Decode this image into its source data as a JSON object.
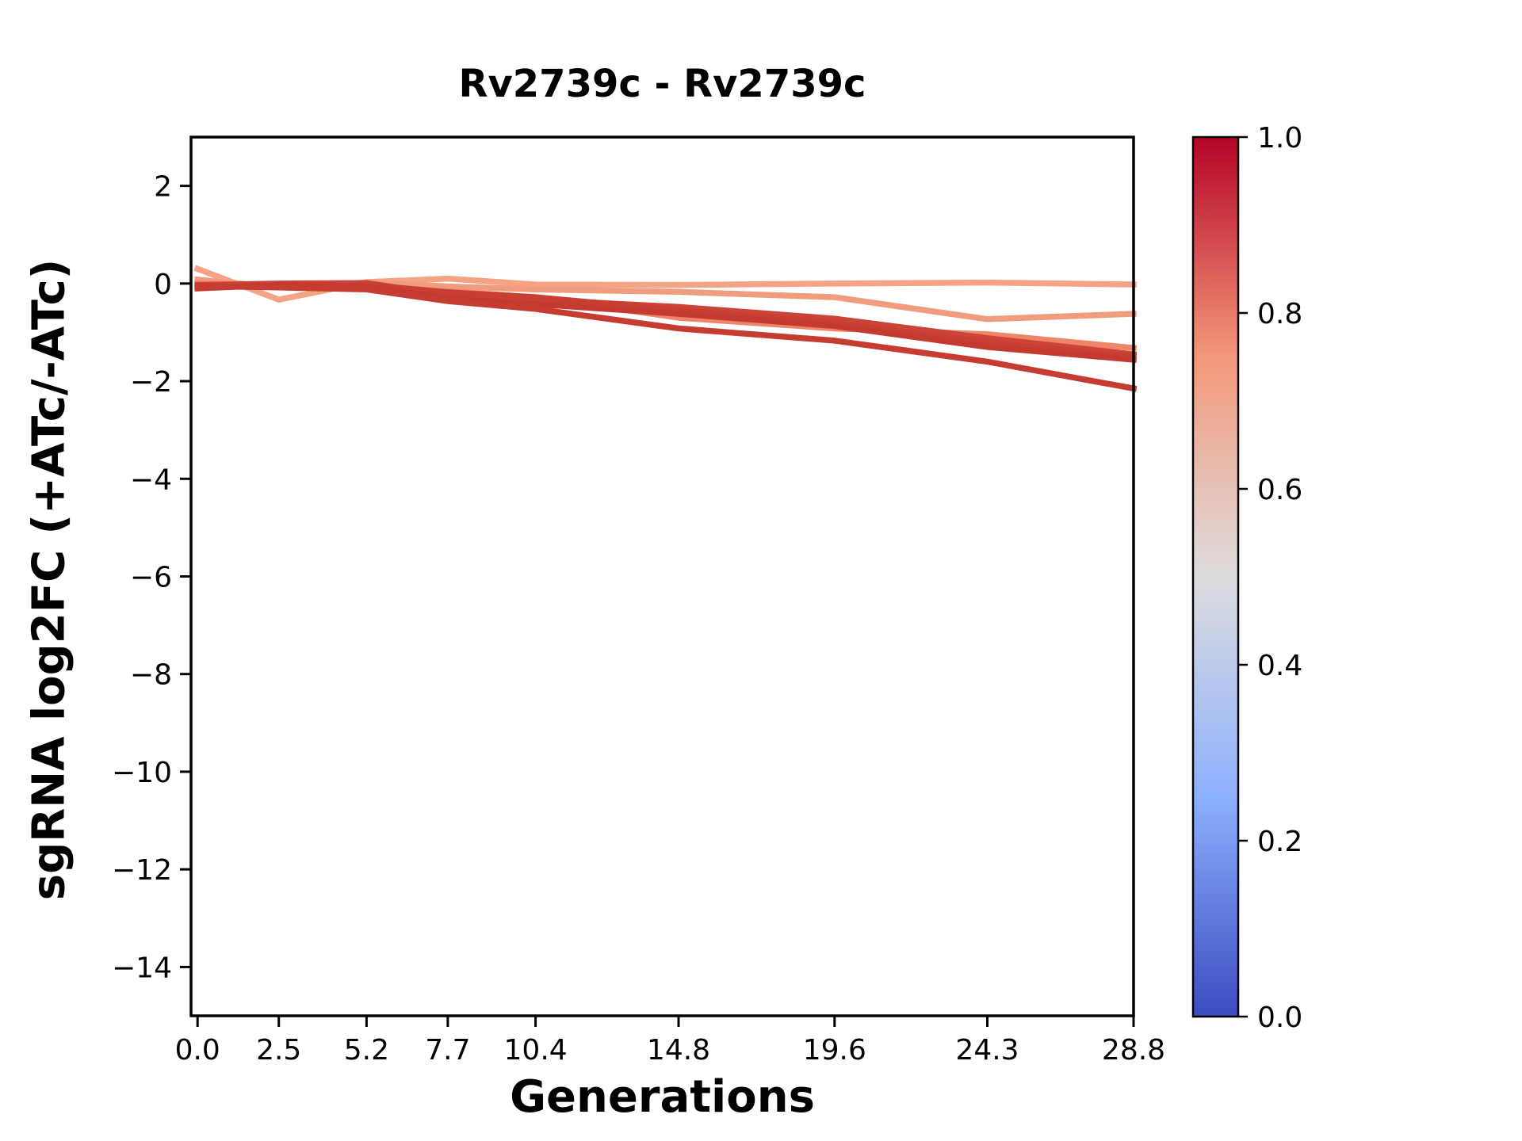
{
  "title": "Rv2739c - Rv2739c",
  "xlabel": "Generations",
  "ylabel": "sgRNA log2FC (+ATc/-ATc)",
  "chart_data": {
    "type": "line",
    "title": "Rv2739c - Rv2739c",
    "xlabel": "Generations",
    "ylabel": "sgRNA log2FC (+ATc/-ATc)",
    "grid": false,
    "legend": "none (colorbar only)",
    "xlim": [
      -0.2,
      28.8
    ],
    "ylim": [
      -15,
      3
    ],
    "x": [
      0.0,
      2.5,
      5.2,
      7.7,
      10.4,
      14.8,
      19.6,
      24.3,
      28.8
    ],
    "xtick_labels": [
      "0.0",
      "2.5",
      "5.2",
      "7.7",
      "10.4",
      "14.8",
      "19.6",
      "24.3",
      "28.8"
    ],
    "ytick_values": [
      2,
      0,
      -2,
      -4,
      -6,
      -8,
      -10,
      -12,
      -14
    ],
    "ytick_labels": [
      "2",
      "0",
      "−2",
      "−4",
      "−6",
      "−8",
      "−10",
      "−12",
      "−14"
    ],
    "series": [
      {
        "name": "line-1",
        "color": "#f4a384",
        "values": [
          0.3,
          -0.33,
          0.03,
          0.1,
          -0.02,
          -0.03,
          0.0,
          0.02,
          -0.02
        ]
      },
      {
        "name": "line-2",
        "color": "#f19c7c",
        "values": [
          0.08,
          -0.08,
          0.02,
          -0.06,
          -0.12,
          -0.17,
          -0.28,
          -0.73,
          -0.62
        ]
      },
      {
        "name": "line-3",
        "color": "#ee8468",
        "values": [
          0.0,
          -0.05,
          -0.04,
          -0.16,
          -0.28,
          -0.7,
          -0.92,
          -1.04,
          -1.32
        ]
      },
      {
        "name": "line-4",
        "color": "#cc4437",
        "values": [
          -0.03,
          0.0,
          0.01,
          -0.24,
          -0.33,
          -0.48,
          -0.72,
          -1.12,
          -1.45
        ]
      },
      {
        "name": "line-5",
        "color": "#c83e31",
        "values": [
          -0.06,
          -0.06,
          -0.03,
          -0.18,
          -0.28,
          -0.55,
          -0.8,
          -1.22,
          -1.5
        ]
      },
      {
        "name": "line-6",
        "color": "#c53a2e",
        "values": [
          -0.1,
          -0.03,
          -0.07,
          -0.3,
          -0.42,
          -0.62,
          -0.87,
          -1.3,
          -1.56
        ]
      },
      {
        "name": "line-7",
        "color": "#c63c30",
        "values": [
          -0.05,
          -0.08,
          -0.12,
          -0.36,
          -0.52,
          -0.92,
          -1.17,
          -1.6,
          -2.15
        ]
      }
    ],
    "colorbar": {
      "min": 0.0,
      "max": 1.0,
      "tick_values": [
        1.0,
        0.8,
        0.6,
        0.4,
        0.2,
        0.0
      ],
      "tick_labels": [
        "1.0",
        "0.8",
        "0.6",
        "0.4",
        "0.2",
        "0.0"
      ],
      "colormap": "coolwarm",
      "cmap_stops": [
        {
          "pos": 0.0,
          "color": "#3b4cc0"
        },
        {
          "pos": 0.25,
          "color": "#8db0fe"
        },
        {
          "pos": 0.5,
          "color": "#dddddd"
        },
        {
          "pos": 0.75,
          "color": "#f4987a"
        },
        {
          "pos": 1.0,
          "color": "#b40426"
        }
      ]
    }
  }
}
